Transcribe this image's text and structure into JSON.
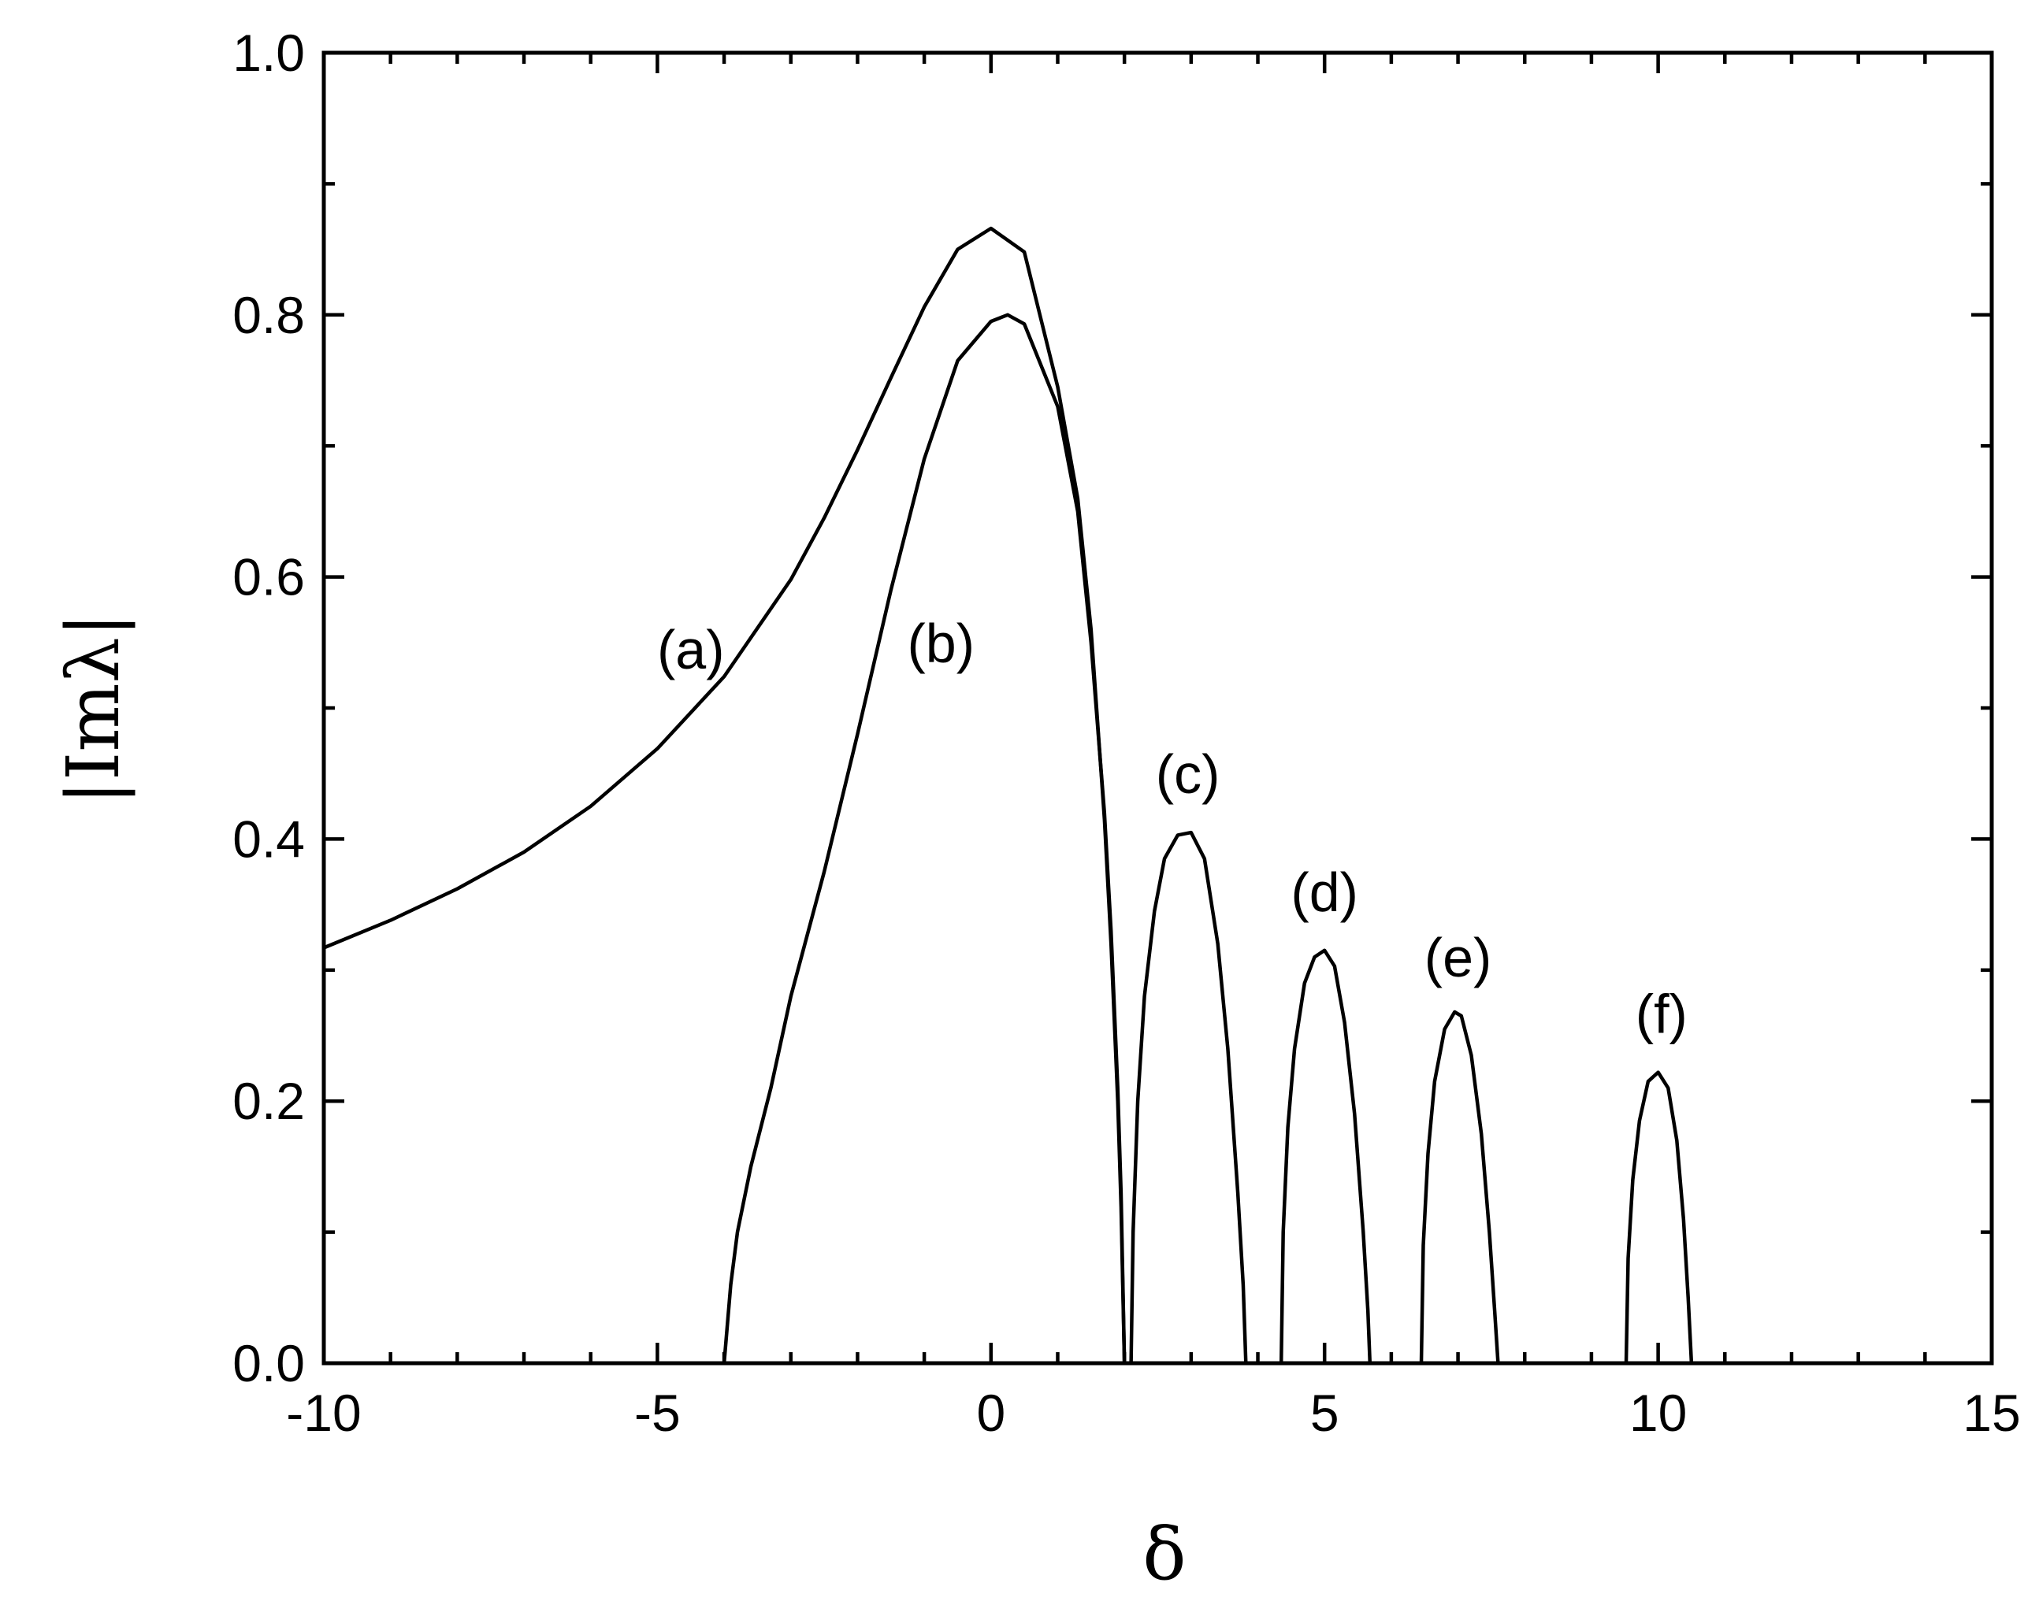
{
  "chart_data": {
    "type": "line",
    "xlabel": "δ",
    "ylabel": "|Imλ|",
    "xlim": [
      -10,
      15
    ],
    "ylim": [
      0,
      1
    ],
    "x_ticks": [
      -10,
      -5,
      0,
      5,
      10,
      15
    ],
    "x_tick_labels": [
      "-10",
      "-5",
      "0",
      "5",
      "10",
      "15"
    ],
    "y_ticks": [
      0,
      0.2,
      0.4,
      0.6,
      0.8,
      1.0
    ],
    "y_tick_labels": [
      "0.0",
      "0.2",
      "0.4",
      "0.6",
      "0.8",
      "1.0"
    ],
    "x_minor_step": 1,
    "y_minor_step": 0.1,
    "grid": false,
    "series": [
      {
        "name": "(a)",
        "label_at": [
          -4.5,
          0.53
        ],
        "x": [
          -10,
          -9,
          -8,
          -7,
          -6,
          -5,
          -4,
          -3,
          -2.5,
          -2,
          -1.5,
          -1,
          -0.5,
          0,
          0.5,
          1,
          1.3,
          1.5,
          1.7,
          1.8,
          1.9,
          1.95,
          2.0
        ],
        "y": [
          0.317,
          0.338,
          0.362,
          0.39,
          0.425,
          0.469,
          0.524,
          0.598,
          0.645,
          0.697,
          0.752,
          0.806,
          0.85,
          0.866,
          0.848,
          0.745,
          0.66,
          0.56,
          0.415,
          0.32,
          0.2,
          0.12,
          0
        ]
      },
      {
        "name": "(b)",
        "label_at": [
          -0.75,
          0.535
        ],
        "x": [
          -4,
          -3.9,
          -3.8,
          -3.6,
          -3.3,
          -3,
          -2.5,
          -2,
          -1.5,
          -1,
          -0.5,
          0,
          0.25,
          0.5,
          1,
          1.3,
          1.5,
          1.7,
          1.8,
          1.9,
          1.95,
          2.0
        ],
        "y": [
          0,
          0.06,
          0.1,
          0.15,
          0.21,
          0.28,
          0.375,
          0.48,
          0.59,
          0.69,
          0.765,
          0.795,
          0.8,
          0.793,
          0.73,
          0.65,
          0.55,
          0.42,
          0.33,
          0.21,
          0.13,
          0
        ]
      },
      {
        "name": "(c)",
        "label_at": [
          2.95,
          0.435
        ],
        "x": [
          2.1,
          2.13,
          2.2,
          2.3,
          2.45,
          2.6,
          2.8,
          3.0,
          3.2,
          3.4,
          3.55,
          3.7,
          3.78,
          3.82
        ],
        "y": [
          0,
          0.1,
          0.2,
          0.28,
          0.345,
          0.385,
          0.403,
          0.405,
          0.385,
          0.32,
          0.24,
          0.13,
          0.06,
          0
        ]
      },
      {
        "name": "(d)",
        "label_at": [
          5.0,
          0.345
        ],
        "x": [
          4.35,
          4.38,
          4.45,
          4.55,
          4.7,
          4.85,
          5.0,
          5.15,
          5.3,
          5.45,
          5.58,
          5.65,
          5.68
        ],
        "y": [
          0,
          0.1,
          0.18,
          0.24,
          0.29,
          0.31,
          0.315,
          0.303,
          0.26,
          0.19,
          0.1,
          0.04,
          0
        ]
      },
      {
        "name": "(e)",
        "label_at": [
          7.0,
          0.295
        ],
        "x": [
          6.45,
          6.48,
          6.55,
          6.65,
          6.8,
          6.95,
          7.05,
          7.2,
          7.35,
          7.47,
          7.55,
          7.6
        ],
        "y": [
          0,
          0.09,
          0.16,
          0.215,
          0.255,
          0.268,
          0.265,
          0.235,
          0.175,
          0.1,
          0.04,
          0
        ]
      },
      {
        "name": "(f)",
        "label_at": [
          10.05,
          0.252
        ],
        "x": [
          9.52,
          9.55,
          9.62,
          9.72,
          9.85,
          10.0,
          10.15,
          10.28,
          10.38,
          10.45,
          10.5
        ],
        "y": [
          0,
          0.08,
          0.14,
          0.185,
          0.215,
          0.222,
          0.21,
          0.17,
          0.11,
          0.05,
          0
        ]
      }
    ]
  }
}
